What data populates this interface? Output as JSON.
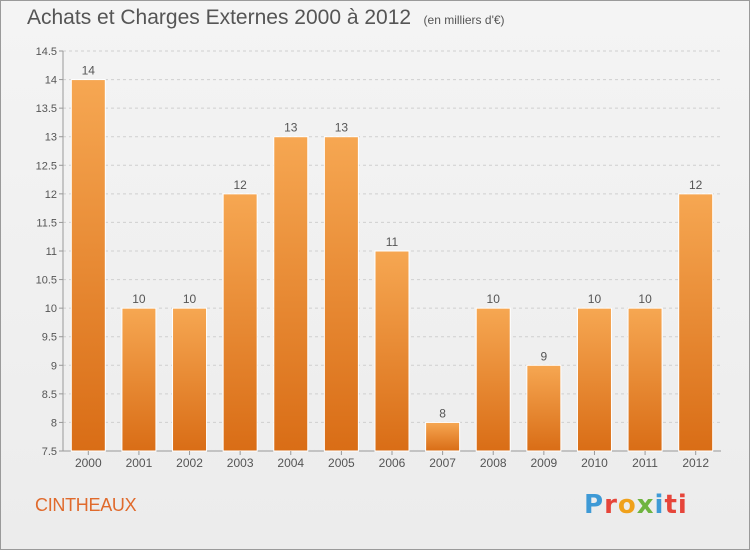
{
  "title": "Achats et Charges Externes 2000 à 2012",
  "unit_note": "(en milliers d'€)",
  "commune": "CINTHEAUX",
  "logo": {
    "text": "Proxiti",
    "colors": [
      "#3e9ad6",
      "#e6453a",
      "#f0a11b",
      "#6fb43f",
      "#3e9ad6",
      "#e6453a",
      "#e6453a"
    ]
  },
  "colors": {
    "bar_top": "#f6a752",
    "bar_bottom": "#d96d16",
    "axis": "#999999",
    "grid": "#cfcfcf"
  },
  "chart_data": {
    "type": "bar",
    "categories": [
      "2000",
      "2001",
      "2002",
      "2003",
      "2004",
      "2005",
      "2006",
      "2007",
      "2008",
      "2009",
      "2010",
      "2011",
      "2012"
    ],
    "values": [
      14,
      10,
      10,
      12,
      13,
      13,
      11,
      8,
      10,
      9,
      10,
      10,
      12
    ],
    "ylim": [
      7.5,
      14.5
    ],
    "yticks": [
      7.5,
      8,
      8.5,
      9,
      9.5,
      10,
      10.5,
      11,
      11.5,
      12,
      12.5,
      13,
      13.5,
      14,
      14.5
    ],
    "ytick_labels": [
      "7.5",
      "8",
      "8.5",
      "9",
      "9.5",
      "10",
      "10.5",
      "11",
      "11.5",
      "12",
      "12.5",
      "13",
      "13.5",
      "14",
      "14.5"
    ],
    "grid": "horizontal dashed",
    "legend": "none"
  }
}
